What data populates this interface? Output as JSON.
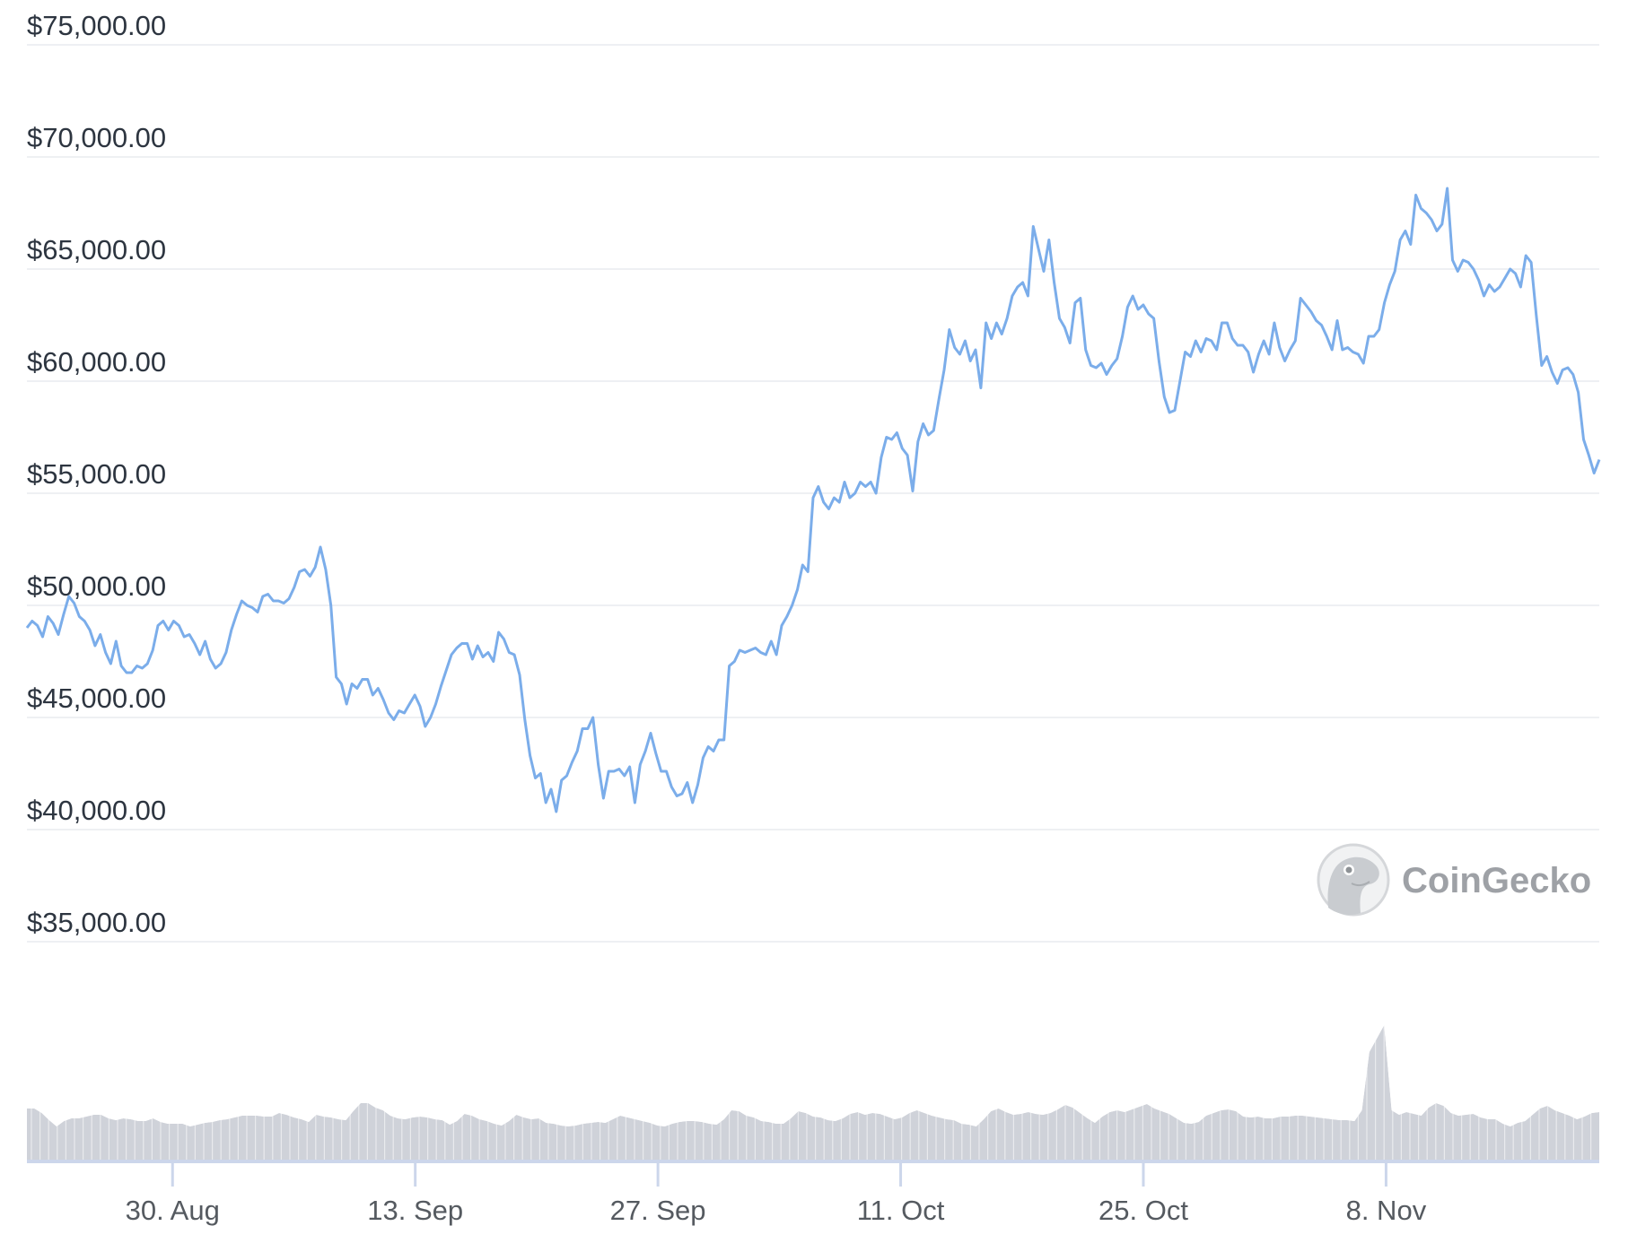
{
  "chart_data": {
    "type": "line",
    "title": "",
    "xlabel": "",
    "ylabel": "",
    "ylim": [
      35000,
      75000
    ],
    "grid": true,
    "legend": "none",
    "y_ticks": [
      "$75,000.00",
      "$70,000.00",
      "$65,000.00",
      "$60,000.00",
      "$55,000.00",
      "$50,000.00",
      "$45,000.00",
      "$40,000.00",
      "$35,000.00"
    ],
    "y_tick_values": [
      75000,
      70000,
      65000,
      60000,
      55000,
      50000,
      45000,
      40000,
      35000
    ],
    "x_ticks": [
      "30. Aug",
      "13. Sep",
      "27. Sep",
      "11. Oct",
      "25. Oct",
      "8. Nov"
    ],
    "x_tick_day_offsets": [
      8.4,
      22.4,
      36.4,
      50.4,
      64.4,
      78.4
    ],
    "x_range_days": 90.7,
    "series": [
      {
        "name": "Price (USD)",
        "color": "#7badea",
        "step_days": 0.5,
        "values": [
          49000,
          49300,
          49100,
          48600,
          49500,
          49200,
          48700,
          49600,
          50400,
          50100,
          49500,
          49300,
          48900,
          48200,
          48700,
          47900,
          47400,
          48400,
          47300,
          47000,
          47000,
          47300,
          47200,
          47400,
          48000,
          49100,
          49300,
          48900,
          49300,
          49100,
          48600,
          48700,
          48300,
          47800,
          48400,
          47600,
          47200,
          47400,
          47900,
          48900,
          49600,
          50200,
          50000,
          49900,
          49700,
          50400,
          50500,
          50200,
          50200,
          50100,
          50300,
          50800,
          51500,
          51600,
          51300,
          51700,
          52600,
          51600,
          50000,
          46800,
          46500,
          45600,
          46500,
          46300,
          46700,
          46700,
          46000,
          46300,
          45800,
          45200,
          44900,
          45300,
          45200,
          45600,
          46000,
          45500,
          44600,
          45000,
          45600,
          46400,
          47100,
          47800,
          48100,
          48300,
          48300,
          47600,
          48200,
          47700,
          47900,
          47500,
          48800,
          48500,
          47900,
          47800,
          46900,
          44900,
          43300,
          42300,
          42500,
          41200,
          41800,
          40800,
          42200,
          42400,
          43000,
          43500,
          44500,
          44500,
          45000,
          42900,
          41400,
          42600,
          42600,
          42700,
          42400,
          42800,
          41200,
          42900,
          43500,
          44300,
          43400,
          42600,
          42600,
          41900,
          41500,
          41600,
          42100,
          41200,
          42000,
          43200,
          43700,
          43500,
          44000,
          44000,
          47300,
          47500,
          48000,
          47900,
          48000,
          48100,
          47900,
          47800,
          48400,
          47800,
          49100,
          49500,
          50000,
          50700,
          51800,
          51500,
          54800,
          55300,
          54600,
          54300,
          54800,
          54600,
          55500,
          54800,
          55000,
          55500,
          55300,
          55500,
          55000,
          56600,
          57500,
          57400,
          57700,
          57000,
          56700,
          55100,
          57300,
          58100,
          57600,
          57800,
          59200,
          60500,
          62300,
          61500,
          61200,
          61800,
          60900,
          61400,
          59700,
          62600,
          61900,
          62600,
          62100,
          62800,
          63800,
          64200,
          64400,
          63800,
          66900,
          65900,
          64900,
          66300,
          64400,
          62800,
          62400,
          61700,
          63500,
          63700,
          61400,
          60700,
          60600,
          60800,
          60300,
          60700,
          61000,
          62000,
          63300,
          63800,
          63200,
          63400,
          63000,
          62800,
          60900,
          59300,
          58600,
          58700,
          60000,
          61300,
          61100,
          61800,
          61300,
          61900,
          61800,
          61400,
          62600,
          62600,
          61900,
          61600,
          61600,
          61300,
          60400,
          61200,
          61800,
          61200,
          62600,
          61500,
          60900,
          61400,
          61800,
          63700,
          63400,
          63100,
          62700,
          62500,
          62000,
          61400,
          62700,
          61400,
          61500,
          61300,
          61200,
          60800,
          62000,
          62000,
          62300,
          63500,
          64300,
          64900,
          66300,
          66700,
          66100,
          68300,
          67700,
          67500,
          67200,
          66700,
          67000,
          68600,
          65400,
          64900,
          65400,
          65300,
          65000,
          64500,
          63800,
          64300,
          64000,
          64200,
          64600,
          65000,
          64800,
          64200,
          65600,
          65300,
          62900,
          60700,
          61100,
          60400,
          59900,
          60500,
          60600,
          60300,
          59500,
          57400,
          56700,
          55900,
          56500
        ]
      },
      {
        "name": "Volume",
        "color": "#cfd2d9",
        "note": "relative heights in px above baseline",
        "values": [
          57,
          57,
          52,
          44,
          37,
          43,
          46,
          46,
          48,
          50,
          50,
          46,
          44,
          46,
          45,
          43,
          43,
          46,
          42,
          40,
          40,
          40,
          37,
          39,
          41,
          42,
          44,
          45,
          47,
          49,
          49,
          49,
          48,
          48,
          52,
          50,
          47,
          45,
          42,
          50,
          48,
          47,
          45,
          44,
          54,
          63,
          63,
          58,
          55,
          49,
          46,
          45,
          47,
          48,
          47,
          45,
          44,
          39,
          43,
          51,
          49,
          45,
          43,
          40,
          38,
          43,
          50,
          47,
          45,
          46,
          41,
          40,
          38,
          37,
          38,
          40,
          41,
          42,
          41,
          45,
          49,
          47,
          45,
          43,
          41,
          38,
          37,
          40,
          42,
          43,
          43,
          42,
          40,
          39,
          45,
          55,
          54,
          49,
          47,
          43,
          42,
          40,
          40,
          46,
          54,
          52,
          48,
          47,
          44,
          43,
          46,
          51,
          53,
          50,
          52,
          51,
          48,
          45,
          47,
          52,
          55,
          52,
          49,
          47,
          45,
          44,
          40,
          39,
          37,
          45,
          54,
          57,
          53,
          50,
          51,
          53,
          51,
          50,
          52,
          56,
          61,
          58,
          52,
          46,
          41,
          48,
          53,
          55,
          53,
          56,
          59,
          62,
          57,
          54,
          51,
          46,
          41,
          40,
          42,
          49,
          52,
          55,
          56,
          54,
          48,
          47,
          48,
          46,
          46,
          48,
          48,
          49,
          49,
          48,
          47,
          46,
          45,
          44,
          44,
          43,
          55,
          120,
          135,
          150,
          55,
          50,
          53,
          51,
          49,
          58,
          63,
          60,
          52,
          49,
          50,
          51,
          47,
          45,
          45,
          40,
          37,
          41,
          43,
          50,
          57,
          60,
          55,
          52,
          49,
          45,
          48,
          52,
          53
        ]
      }
    ]
  },
  "watermark": {
    "brand": "CoinGecko",
    "icon": "gecko-logo-icon"
  }
}
